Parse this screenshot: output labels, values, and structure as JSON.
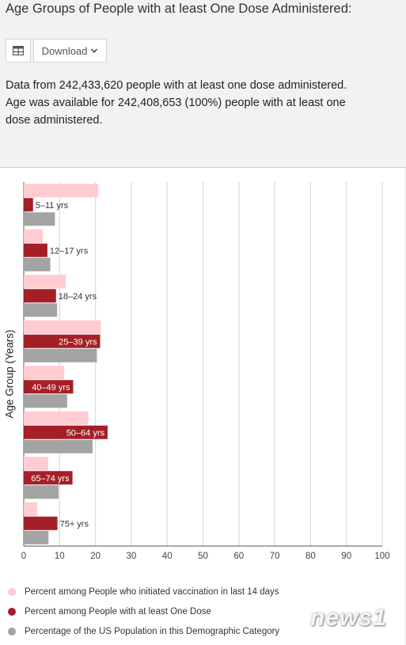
{
  "title": "Age Groups of People with at least One Dose Administered:",
  "toolbar": {
    "table_icon": "table-icon",
    "download_label": "Download"
  },
  "description": {
    "line1": "Data from 242,433,620 people with at least one dose administered.",
    "line2": "Age was available for 242,408,653 (100%) people with at least one",
    "line3": "dose administered."
  },
  "chart_data": {
    "type": "bar",
    "orientation": "horizontal",
    "categories": [
      "5–11 yrs",
      "12–17 yrs",
      "18–24 yrs",
      "25–39 yrs",
      "40–49 yrs",
      "50–64 yrs",
      "65–74 yrs",
      "75+ yrs"
    ],
    "series": [
      {
        "name": "Percent among People who initiated vaccination in last 14 days",
        "color": "#ffccd1",
        "values": [
          20.8,
          5.3,
          11.7,
          21.5,
          11.3,
          18.0,
          6.8,
          3.8
        ]
      },
      {
        "name": "Percent among People with at least One Dose",
        "color": "#a51f27",
        "values": [
          2.6,
          6.6,
          9.0,
          21.3,
          13.8,
          23.4,
          13.6,
          9.4
        ]
      },
      {
        "name": "Percentage of the US Population in this Demographic Category",
        "color": "#a3a3a3",
        "values": [
          8.7,
          7.4,
          9.3,
          20.4,
          12.1,
          19.2,
          9.7,
          6.9
        ]
      }
    ],
    "xticks": [
      0,
      10,
      20,
      30,
      40,
      50,
      60,
      70,
      80,
      90,
      100
    ],
    "xlim": [
      0,
      100
    ],
    "xlabel": "",
    "ylabel": "Age Group (Years)",
    "grid": true,
    "legend_position": "bottom"
  },
  "watermark": "news1"
}
